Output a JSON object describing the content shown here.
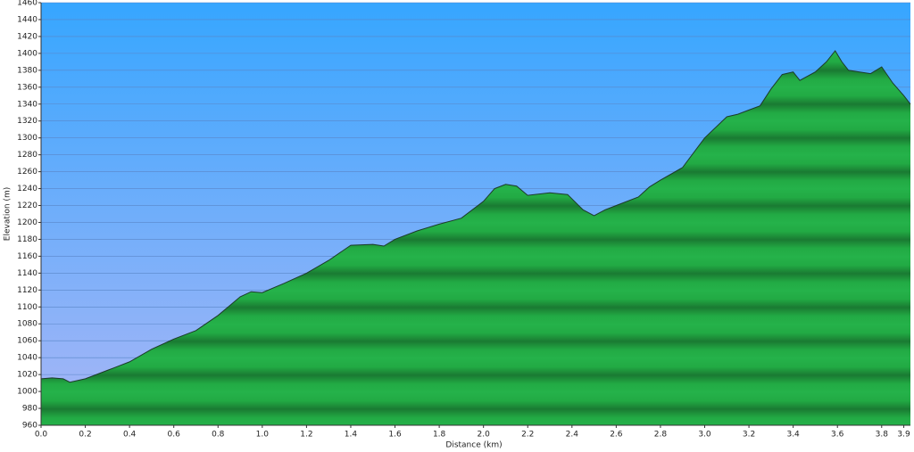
{
  "chart_data": {
    "type": "area",
    "xlabel": "Distance   (km)",
    "ylabel": "Elevation (m)",
    "x": [
      0,
      0.05,
      0.1,
      0.13,
      0.2,
      0.3,
      0.4,
      0.5,
      0.6,
      0.7,
      0.8,
      0.9,
      0.95,
      1.0,
      1.1,
      1.2,
      1.3,
      1.4,
      1.5,
      1.55,
      1.6,
      1.7,
      1.8,
      1.9,
      2.0,
      2.05,
      2.1,
      2.15,
      2.2,
      2.3,
      2.38,
      2.45,
      2.5,
      2.55,
      2.6,
      2.7,
      2.75,
      2.8,
      2.9,
      3.0,
      3.1,
      3.15,
      3.2,
      3.25,
      3.3,
      3.35,
      3.4,
      3.43,
      3.5,
      3.55,
      3.59,
      3.62,
      3.65,
      3.7,
      3.75,
      3.8,
      3.85,
      3.9,
      3.93
    ],
    "values": [
      1015,
      1016,
      1015,
      1011,
      1015,
      1025,
      1035,
      1050,
      1062,
      1072,
      1090,
      1112,
      1118,
      1117,
      1128,
      1140,
      1155,
      1173,
      1174,
      1172,
      1180,
      1190,
      1198,
      1205,
      1225,
      1240,
      1245,
      1243,
      1232,
      1235,
      1233,
      1215,
      1208,
      1215,
      1220,
      1230,
      1242,
      1250,
      1265,
      1300,
      1325,
      1328,
      1333,
      1338,
      1358,
      1375,
      1378,
      1368,
      1378,
      1390,
      1403,
      1390,
      1380,
      1378,
      1376,
      1384,
      1365,
      1350,
      1340
    ],
    "color": "#22aa44",
    "xlim": [
      0,
      3.93
    ],
    "ylim": [
      960,
      1460
    ],
    "xticks": [
      {
        "value": 0,
        "label": "0.0"
      },
      0.2,
      0.4,
      0.6,
      0.8,
      {
        "value": 1,
        "label": "1.0"
      },
      1.2,
      1.4,
      1.6,
      1.8,
      {
        "value": 2,
        "label": "2.0"
      },
      2.2,
      2.4,
      2.6,
      2.8,
      {
        "value": 3,
        "label": "3.0"
      },
      3.2,
      3.4,
      3.6,
      3.8,
      3.9
    ],
    "yticks": [
      960,
      980,
      1000,
      1020,
      1040,
      1060,
      1080,
      1100,
      1120,
      1140,
      1160,
      1180,
      1200,
      1220,
      1240,
      1260,
      1280,
      1300,
      1320,
      1340,
      1360,
      1380,
      1400,
      1420,
      1440,
      1460
    ],
    "grid": true
  }
}
